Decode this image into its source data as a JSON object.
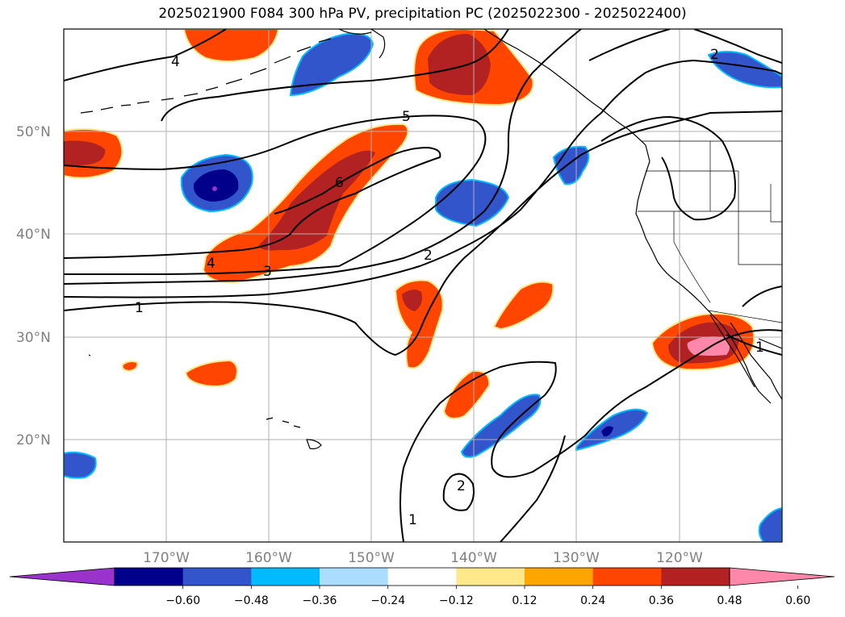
{
  "title": "2025021900 F084 300 hPa PV, precipitation PC (2025022300 - 2025022400)",
  "lat_labels": [
    "50°N",
    "40°N",
    "30°N",
    "20°N"
  ],
  "lon_labels": [
    "170°W",
    "160°W",
    "150°W",
    "140°W",
    "130°W",
    "120°W"
  ],
  "colorbar": {
    "colors": [
      "#9933cc",
      "#00008b",
      "#3355cc",
      "#00bbff",
      "#aaddff",
      "#ffffff",
      "#ffe88a",
      "#ffa500",
      "#ff4500",
      "#b22222",
      "#ff88aa"
    ],
    "tick_labels": [
      "−0.60",
      "−0.48",
      "−0.36",
      "−0.24",
      "−0.12",
      "0.12",
      "0.24",
      "0.36",
      "0.48",
      "0.60"
    ]
  },
  "contour_labels": [
    "4",
    "5",
    "6",
    "4",
    "3",
    "2",
    "1",
    "2",
    "1",
    "2",
    "1"
  ],
  "colors": {
    "grid": "#b0b0b0",
    "contour": "#000000",
    "land": "#000000"
  }
}
